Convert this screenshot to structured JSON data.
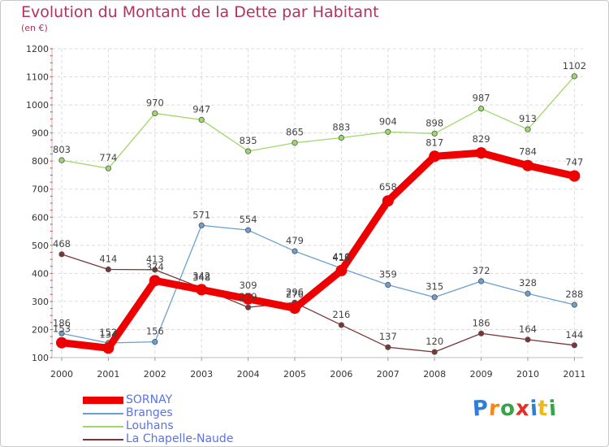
{
  "title": "Evolution du Montant de la Dette par Habitant",
  "subtitle": "(en €)",
  "logo_text": "Proxiti",
  "colors": {
    "title": "#b4325d",
    "legend_text": "#5a74e0",
    "grid": "#dcdcdc",
    "axis_tick": "#cc2222"
  },
  "chart_data": {
    "type": "line",
    "title": "Evolution du Montant de la Dette par Habitant",
    "subtitle": "(en €)",
    "xlabel": "",
    "ylabel": "",
    "x": [
      "2000",
      "2001",
      "2002",
      "2003",
      "2004",
      "2005",
      "2006",
      "2007",
      "2008",
      "2009",
      "2010",
      "2011"
    ],
    "ylim": [
      100,
      1200
    ],
    "yticks": [
      100,
      200,
      300,
      400,
      500,
      600,
      700,
      800,
      900,
      1000,
      1100,
      1200
    ],
    "grid": true,
    "legend_position": "bottom-left",
    "series": [
      {
        "name": "SORNAY",
        "color": "#ee0000",
        "values": [
          153,
          134,
          374,
          342,
          309,
          276,
          410,
          658,
          817,
          829,
          784,
          747
        ]
      },
      {
        "name": "Branges",
        "color": "#6a9fd0",
        "values": [
          186,
          152,
          156,
          571,
          554,
          479,
          418,
          359,
          315,
          372,
          328,
          288
        ]
      },
      {
        "name": "Louhans",
        "color": "#9fd86a",
        "values": [
          803,
          774,
          970,
          947,
          835,
          865,
          883,
          904,
          898,
          987,
          913,
          1102
        ]
      },
      {
        "name": "La Chapelle-Naude",
        "color": "#7a3636",
        "values": [
          468,
          414,
          413,
          348,
          279,
          296,
          216,
          137,
          120,
          186,
          164,
          144
        ]
      }
    ]
  }
}
